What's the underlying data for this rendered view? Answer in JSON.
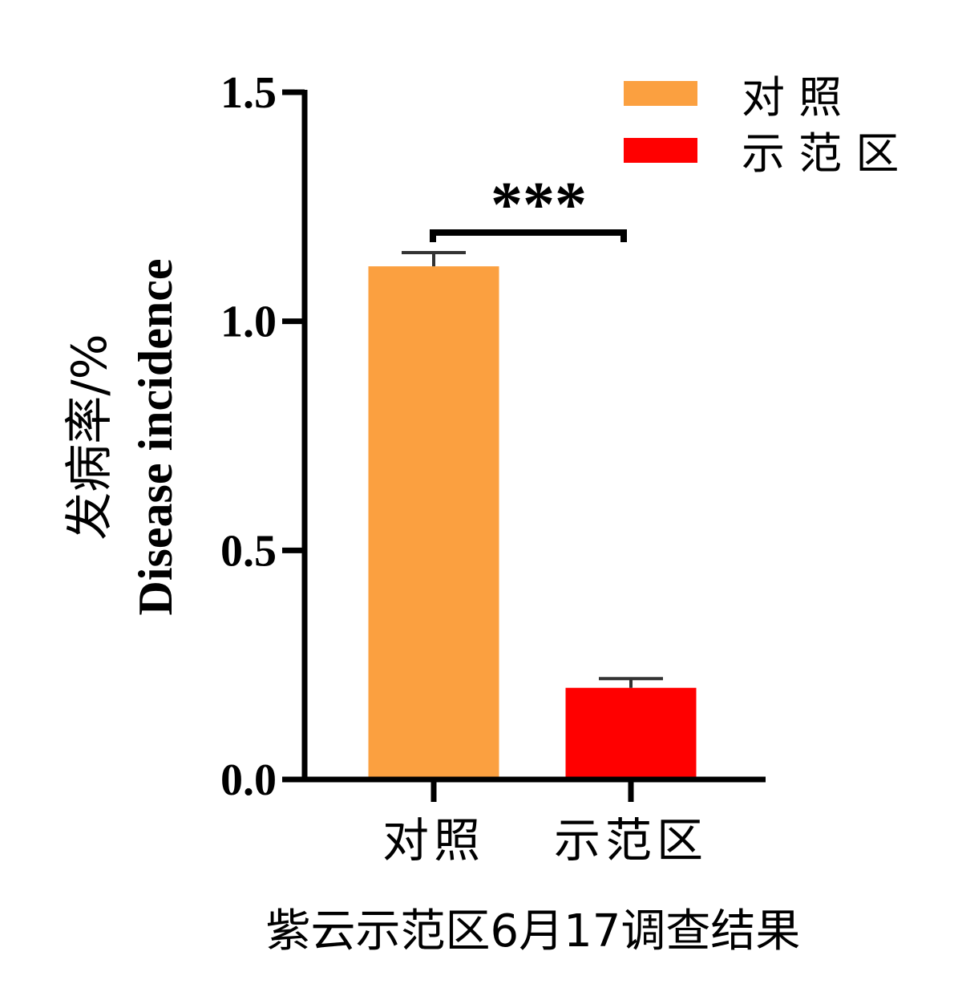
{
  "chart_data": {
    "type": "bar",
    "categories": [
      "对照",
      "示范区"
    ],
    "values": [
      1.12,
      0.2
    ],
    "errors": [
      0.03,
      0.02
    ],
    "colors": [
      "#FBA040",
      "#FF0000"
    ],
    "ylim": [
      0,
      1.5
    ],
    "yticks": [
      "0.0",
      "0.5",
      "1.0",
      "1.5"
    ],
    "ylabel_cn": "发病率/%",
    "ylabel_en": "Disease incidence",
    "legend": {
      "placement": "top-right",
      "items": [
        "对 照",
        "示 范 区"
      ]
    },
    "significance": "***",
    "caption": "紫云示范区6月17调查结果"
  }
}
